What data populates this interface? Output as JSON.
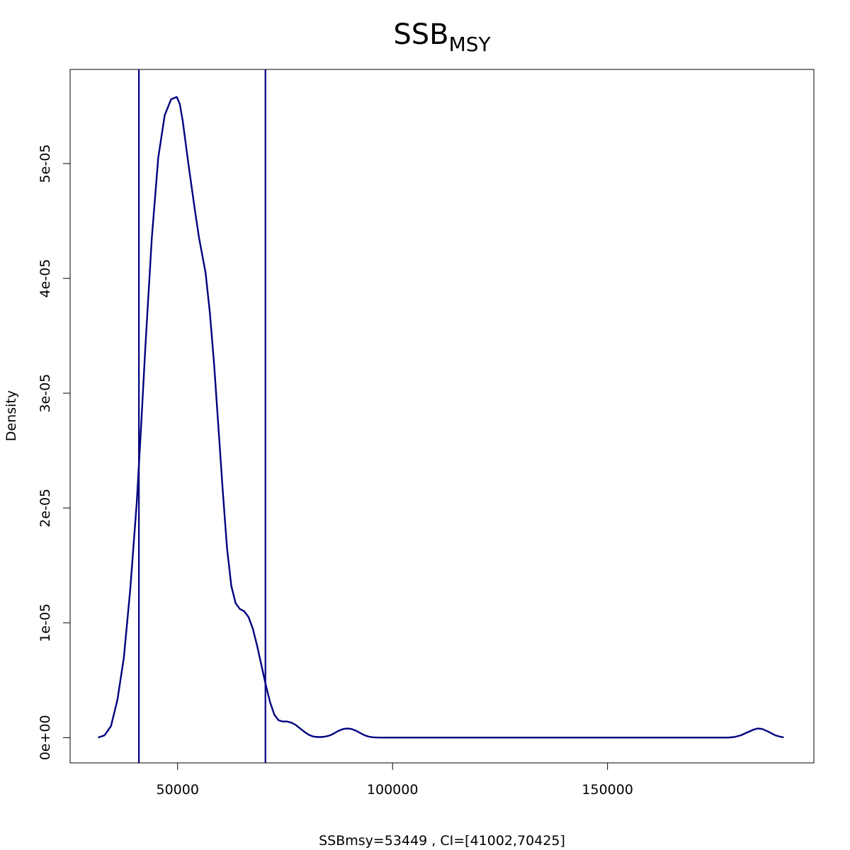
{
  "chart_data": {
    "type": "line",
    "title": "SSB",
    "title_subscript": "MSY",
    "xlabel": "SSBmsy=53449 , CI=[41002,70425]",
    "ylabel": "Density",
    "xlim": [
      25000,
      198000
    ],
    "ylim": [
      -2.2e-06,
      5.82e-05
    ],
    "x_ticks": [
      50000,
      100000,
      150000
    ],
    "x_tick_labels": [
      "50000",
      "100000",
      "150000"
    ],
    "y_ticks": [
      0,
      1e-05,
      2e-05,
      3e-05,
      4e-05,
      5e-05
    ],
    "y_tick_labels": [
      "0e+00",
      "1e-05",
      "2e-05",
      "3e-05",
      "4e-05",
      "5e-05"
    ],
    "grid": false,
    "line_color": "#000080",
    "series": [
      {
        "x": [
          31500,
          33000,
          34500,
          36000,
          37500,
          39000,
          40500,
          41500,
          42500,
          44000,
          45500,
          47000,
          48500,
          49800,
          50500,
          51200,
          52500,
          54000,
          55000,
          56500,
          57500,
          58500,
          59500,
          60500,
          61500,
          62500,
          63500,
          64500,
          65500,
          66500,
          67500,
          68500,
          69500,
          70500,
          71500,
          72500,
          73500,
          74500,
          75500,
          76500,
          77500,
          78500,
          79500,
          80500,
          81500,
          82500,
          83500,
          84500,
          85500,
          86500,
          87500,
          88500,
          89500,
          90500,
          91500,
          92500,
          93500,
          94500,
          95500,
          96500,
          98000,
          100000,
          120000,
          150000,
          170000,
          178000,
          179500,
          181000,
          182500,
          184000,
          185000,
          186000,
          187500,
          189000,
          190500,
          191000
        ],
        "y": [
          0.0,
          2e-07,
          1e-06,
          3.3e-06,
          7e-06,
          1.3e-05,
          2.05e-05,
          2.7e-05,
          3.4e-05,
          4.35e-05,
          5.05e-05,
          5.42e-05,
          5.56e-05,
          5.58e-05,
          5.52e-05,
          5.37e-05,
          5e-05,
          4.6e-05,
          4.35e-05,
          4.05e-05,
          3.7e-05,
          3.25e-05,
          2.7e-05,
          2.15e-05,
          1.65e-05,
          1.32e-05,
          1.17e-05,
          1.12e-05,
          1.1e-05,
          1.05e-05,
          9.5e-06,
          8e-06,
          6.3e-06,
          4.6e-06,
          3.1e-06,
          2e-06,
          1.5e-06,
          1.4e-06,
          1.4e-06,
          1.3e-06,
          1.1e-06,
          8e-07,
          5e-07,
          2.5e-07,
          1e-07,
          5e-08,
          5e-08,
          1e-07,
          2e-07,
          4e-07,
          6e-07,
          7.5e-07,
          8e-07,
          7.5e-07,
          6e-07,
          4e-07,
          2e-07,
          8e-08,
          3e-08,
          1e-08,
          0.0,
          0.0,
          0.0,
          0.0,
          0.0,
          0.0,
          5e-08,
          2e-07,
          4.5e-07,
          7e-07,
          8e-07,
          7.5e-07,
          5e-07,
          2e-07,
          5e-08,
          2e-08
        ]
      }
    ],
    "vlines": [
      41002,
      70425
    ]
  }
}
